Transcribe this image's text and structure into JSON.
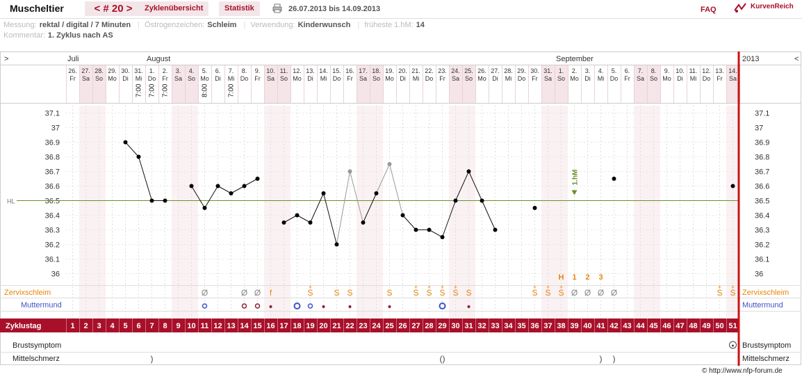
{
  "header": {
    "title": "Muscheltier",
    "cycle_nav": "< # 20 >",
    "tab_overview": "Zyklenübersicht",
    "tab_stats": "Statistik",
    "date_range": "26.07.2013 bis 14.09.2013",
    "faq": "FAQ",
    "brand": "KurvenReich"
  },
  "meta": {
    "messung_label": "Messung:",
    "messung_value": "rektal / digital / 7 Minuten",
    "oestrogen_label": "Östrogenzeichen:",
    "oestrogen_value": "Schleim",
    "verwendung_label": "Verwendung:",
    "verwendung_value": "Kinderwunsch",
    "frueheste_label": "früheste 1.hM:",
    "frueheste_value": "14",
    "kommentar_label": "Kommentar:",
    "kommentar_value": "1. Zyklus nach AS"
  },
  "colors": {
    "accent": "#a8102a",
    "weekend": "#f5e4e8",
    "zervix": "#e8860c",
    "muttermund": "#3f53c8",
    "hl_line": "#6b8f2a"
  },
  "chart_data": {
    "type": "line",
    "months": [
      {
        "label": "Juli",
        "day_index": 0
      },
      {
        "label": "August",
        "day_index": 6
      },
      {
        "label": "September",
        "day_index": 37
      }
    ],
    "year": "2013",
    "nav_left": ">",
    "nav_right": "<",
    "dates": [
      "26.",
      "27.",
      "28.",
      "29.",
      "30.",
      "31.",
      "1.",
      "2.",
      "3.",
      "4.",
      "5.",
      "6.",
      "7.",
      "8.",
      "9.",
      "10.",
      "11.",
      "12.",
      "13.",
      "14.",
      "15.",
      "16.",
      "17.",
      "18.",
      "19.",
      "20.",
      "21.",
      "22.",
      "23.",
      "24.",
      "25.",
      "26.",
      "27.",
      "28.",
      "29.",
      "30.",
      "31.",
      "1.",
      "2.",
      "3.",
      "4.",
      "5.",
      "6.",
      "7.",
      "8.",
      "9.",
      "10.",
      "11.",
      "12.",
      "13.",
      "14."
    ],
    "weekdays": [
      "Fr",
      "Sa",
      "So",
      "Mo",
      "Di",
      "Mi",
      "Do",
      "Fr",
      "Sa",
      "So",
      "Mo",
      "Di",
      "Mi",
      "Do",
      "Fr",
      "Sa",
      "So",
      "Mo",
      "Di",
      "Mi",
      "Do",
      "Fr",
      "Sa",
      "So",
      "Mo",
      "Di",
      "Mi",
      "Do",
      "Fr",
      "Sa",
      "So",
      "Mo",
      "Di",
      "Mi",
      "Do",
      "Fr",
      "Sa",
      "So",
      "Mo",
      "Di",
      "Mi",
      "Do",
      "Fr",
      "Sa",
      "So",
      "Mo",
      "Di",
      "Mi",
      "Do",
      "Fr",
      "Sa"
    ],
    "times": [
      {
        "day": 5,
        "value": "7:00"
      },
      {
        "day": 6,
        "value": "7:00"
      },
      {
        "day": 7,
        "value": "7:00"
      },
      {
        "day": 10,
        "value": "8:00"
      },
      {
        "day": 12,
        "value": "7:00"
      }
    ],
    "y_ticks": [
      "37.1",
      "37",
      "36.9",
      "36.8",
      "36.7",
      "36.6",
      "36.5",
      "36.4",
      "36.3",
      "36.2",
      "36.1",
      "36"
    ],
    "ylim": [
      35.95,
      37.15
    ],
    "hl": {
      "label": "HL",
      "value": 36.5
    },
    "temps": [
      null,
      null,
      null,
      null,
      36.9,
      36.8,
      36.5,
      36.5,
      null,
      36.6,
      36.45,
      36.6,
      36.55,
      36.6,
      36.65,
      null,
      36.35,
      36.4,
      36.35,
      36.55,
      36.2,
      36.7,
      36.35,
      36.55,
      36.75,
      36.4,
      36.3,
      36.3,
      36.25,
      36.5,
      36.7,
      36.5,
      36.3,
      null,
      null,
      36.45,
      null,
      null,
      null,
      null,
      null,
      36.65,
      null,
      null,
      null,
      null,
      null,
      null,
      null,
      null,
      36.6
    ],
    "excluded_days": [
      22,
      25
    ],
    "one_hm": {
      "day": 39,
      "label": "1.hM"
    },
    "count_labels": [
      {
        "day": 38,
        "value": "H"
      },
      {
        "day": 39,
        "value": "1"
      },
      {
        "day": 40,
        "value": "2"
      },
      {
        "day": 41,
        "value": "3"
      }
    ],
    "zervix_label": "Zervixschleim",
    "zervix": [
      {
        "day": 11,
        "symbol": "Ø",
        "plus": false
      },
      {
        "day": 14,
        "symbol": "Ø",
        "plus": false
      },
      {
        "day": 15,
        "symbol": "Ø",
        "plus": false
      },
      {
        "day": 16,
        "symbol": "f",
        "plus": false
      },
      {
        "day": 19,
        "symbol": "S",
        "plus": true
      },
      {
        "day": 21,
        "symbol": "S",
        "plus": false
      },
      {
        "day": 22,
        "symbol": "S",
        "plus": false
      },
      {
        "day": 25,
        "symbol": "S",
        "plus": false
      },
      {
        "day": 27,
        "symbol": "S",
        "plus": true
      },
      {
        "day": 28,
        "symbol": "S",
        "plus": true
      },
      {
        "day": 29,
        "symbol": "S",
        "plus": true
      },
      {
        "day": 30,
        "symbol": "S",
        "plus": true
      },
      {
        "day": 31,
        "symbol": "S",
        "plus": false
      },
      {
        "day": 36,
        "symbol": "S",
        "plus": true
      },
      {
        "day": 37,
        "symbol": "S",
        "plus": true
      },
      {
        "day": 38,
        "symbol": "S",
        "plus": true
      },
      {
        "day": 39,
        "symbol": "Ø",
        "plus": false
      },
      {
        "day": 40,
        "symbol": "Ø",
        "plus": false
      },
      {
        "day": 41,
        "symbol": "Ø",
        "plus": false
      },
      {
        "day": 42,
        "symbol": "Ø",
        "plus": false
      },
      {
        "day": 50,
        "symbol": "S",
        "plus": true
      },
      {
        "day": 51,
        "symbol": "S",
        "plus": true
      }
    ],
    "muttermund_label": "Muttermund",
    "muttermund": [
      {
        "day": 11,
        "kind": "open-small"
      },
      {
        "day": 14,
        "kind": "closed"
      },
      {
        "day": 15,
        "kind": "closed"
      },
      {
        "day": 16,
        "kind": "dot"
      },
      {
        "day": 18,
        "kind": "open"
      },
      {
        "day": 19,
        "kind": "open-small"
      },
      {
        "day": 20,
        "kind": "dot"
      },
      {
        "day": 22,
        "kind": "dot"
      },
      {
        "day": 25,
        "kind": "dot"
      },
      {
        "day": 29,
        "kind": "open"
      },
      {
        "day": 31,
        "kind": "dot"
      }
    ],
    "zyklustag_label": "Zyklustag",
    "zyklustage": [
      "1",
      "2",
      "3",
      "4",
      "5",
      "6",
      "7",
      "8",
      "9",
      "10",
      "11",
      "12",
      "13",
      "14",
      "15",
      "16",
      "17",
      "18",
      "19",
      "20",
      "21",
      "22",
      "23",
      "24",
      "25",
      "26",
      "27",
      "28",
      "29",
      "30",
      "31",
      "32",
      "33",
      "34",
      "35",
      "36",
      "37",
      "38",
      "39",
      "40",
      "41",
      "42",
      "43",
      "44",
      "45",
      "46",
      "47",
      "48",
      "49",
      "50",
      "51"
    ],
    "brust_label": "Brustsymptom",
    "brust": [
      {
        "day": 51,
        "value": "◡"
      }
    ],
    "mittel_label": "Mittelschmerz",
    "mittel": [
      {
        "day": 7,
        "value": ")"
      },
      {
        "day": 29,
        "value": "()"
      },
      {
        "day": 41,
        "value": ")"
      },
      {
        "day": 42,
        "value": ")"
      }
    ]
  },
  "footer": {
    "copyright": "© http://www.nfp-forum.de"
  }
}
